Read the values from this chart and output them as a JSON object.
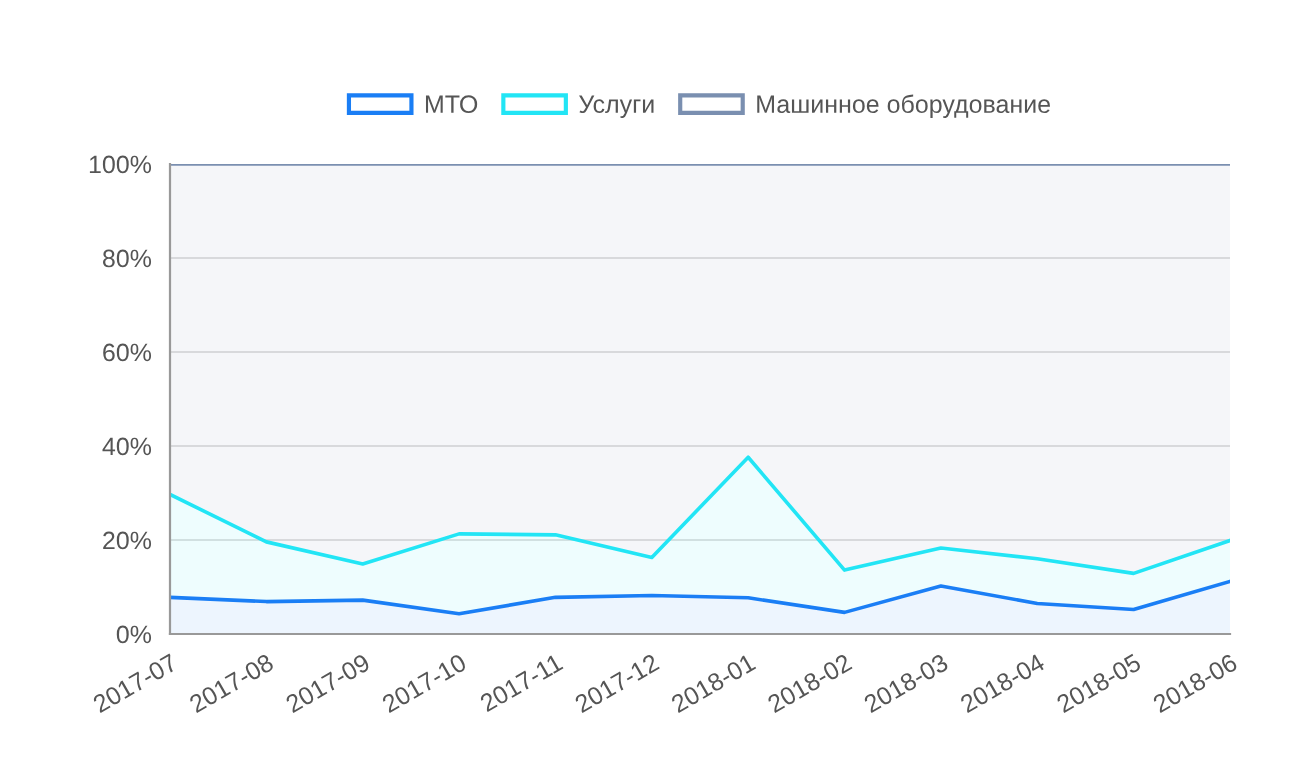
{
  "chart_data": {
    "type": "area",
    "stacked": true,
    "categories": [
      "2017-07",
      "2017-08",
      "2017-09",
      "2017-10",
      "2017-11",
      "2017-12",
      "2018-01",
      "2018-02",
      "2018-03",
      "2018-04",
      "2018-05",
      "2018-06"
    ],
    "series": [
      {
        "name": "МТО",
        "color": "#1a7ef5",
        "values": [
          7.8,
          6.9,
          7.2,
          4.3,
          7.8,
          8.2,
          7.7,
          4.6,
          10.2,
          6.5,
          5.2,
          11.2
        ]
      },
      {
        "name": "Услуги",
        "color": "#22e5f5",
        "values": [
          21.9,
          12.7,
          7.7,
          17.0,
          13.3,
          8.1,
          29.9,
          9.0,
          8.1,
          9.5,
          7.7,
          8.7
        ]
      },
      {
        "name": "Машинное оборудование",
        "color": "#7a8fb0",
        "values": [
          70.3,
          80.4,
          85.1,
          78.7,
          78.9,
          83.7,
          62.4,
          86.4,
          81.7,
          84.0,
          87.1,
          80.1
        ]
      }
    ],
    "ylim": [
      0,
      100
    ],
    "yticks": [
      {
        "value": 0,
        "label": "0%"
      },
      {
        "value": 20,
        "label": "20%"
      },
      {
        "value": 40,
        "label": "40%"
      },
      {
        "value": 60,
        "label": "60%"
      },
      {
        "value": 80,
        "label": "80%"
      },
      {
        "value": 100,
        "label": "100%"
      }
    ],
    "grid": "y",
    "legend": "top"
  }
}
